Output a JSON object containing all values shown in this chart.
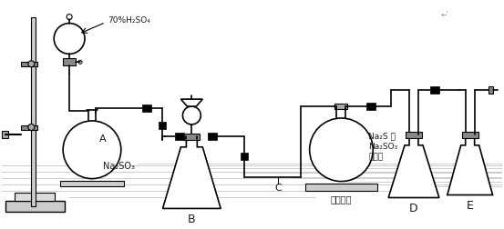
{
  "bg_color": "#ffffff",
  "line_color": "#1a1a1a",
  "lw": 1.2,
  "labels": {
    "H2SO4": "70%H₂SO₄",
    "Na2SO3_A": "Na₂SO₃",
    "flask_A": "A",
    "flask_B": "B",
    "flask_C": "C",
    "flask_D": "D",
    "flask_E": "E",
    "heat": "加热装置",
    "mixture": "Na₂S 与\nNa₂SO₃\n混合液"
  },
  "fig_width": 5.53,
  "fig_height": 2.52,
  "dpi": 100
}
